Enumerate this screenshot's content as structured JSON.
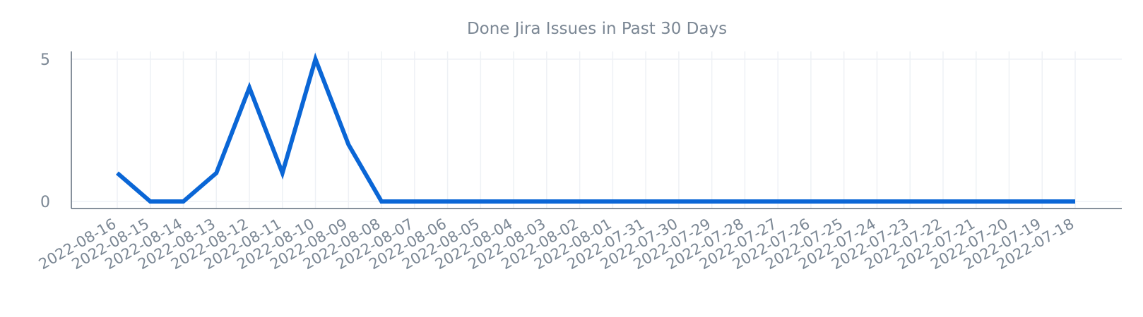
{
  "chart_data": {
    "type": "line",
    "title": "Done Jira Issues in Past 30 Days",
    "xlabel": "",
    "ylabel": "",
    "categories": [
      "2022-08-16",
      "2022-08-15",
      "2022-08-14",
      "2022-08-13",
      "2022-08-12",
      "2022-08-11",
      "2022-08-10",
      "2022-08-09",
      "2022-08-08",
      "2022-08-07",
      "2022-08-06",
      "2022-08-05",
      "2022-08-04",
      "2022-08-03",
      "2022-08-02",
      "2022-08-01",
      "2022-07-31",
      "2022-07-30",
      "2022-07-29",
      "2022-07-28",
      "2022-07-27",
      "2022-07-26",
      "2022-07-25",
      "2022-07-24",
      "2022-07-23",
      "2022-07-22",
      "2022-07-21",
      "2022-07-20",
      "2022-07-19",
      "2022-07-18"
    ],
    "series": [
      {
        "values": [
          1,
          0,
          0,
          1,
          4,
          1,
          5,
          2,
          0,
          0,
          0,
          0,
          0,
          0,
          0,
          0,
          0,
          0,
          0,
          0,
          0,
          0,
          0,
          0,
          0,
          0,
          0,
          0,
          0,
          0
        ],
        "color": "#0a66d6"
      }
    ],
    "yticks": [
      0,
      5
    ],
    "ylim": [
      0,
      5
    ],
    "grid": true,
    "legend": "none"
  },
  "colors": {
    "line": "#0a66d6",
    "axis": "#5f6b7a",
    "grid": "#eef1f5",
    "text": "#7b8794"
  }
}
